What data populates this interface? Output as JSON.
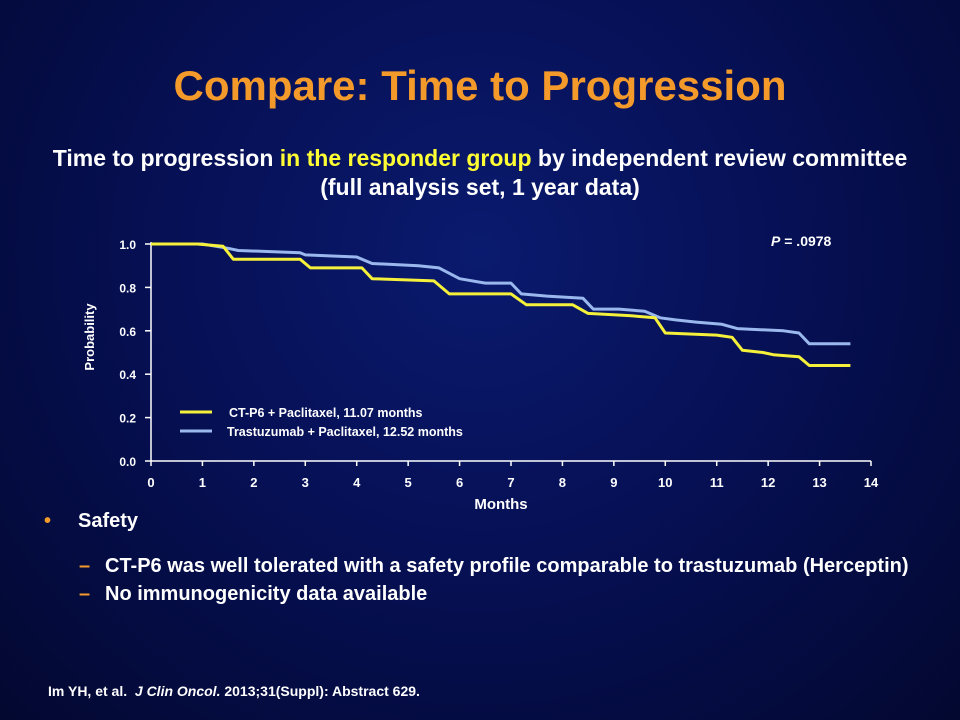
{
  "slide": {
    "title": "Compare: Time to Progression",
    "subtitle_part1": "Time to progression ",
    "subtitle_highlight": "in the responder group",
    "subtitle_part2": " by independent review committee (full analysis set, 1 year data)",
    "highlight_color": "#ffff33",
    "title_color": "#f39a2a"
  },
  "chart_data": {
    "type": "line",
    "xlabel": "Months",
    "ylabel": "Probability",
    "xlim": [
      0,
      14
    ],
    "ylim": [
      0,
      1.0
    ],
    "x_ticks": [
      "0",
      "1",
      "2",
      "3",
      "4",
      "5",
      "6",
      "7",
      "8",
      "9",
      "10",
      "11",
      "12",
      "13",
      "14"
    ],
    "y_ticks": [
      "0.0",
      "0.2",
      "0.4",
      "0.6",
      "0.8",
      "1.0"
    ],
    "annotation_prefix": "P",
    "annotation_value": " = .0978",
    "legend_position": "bottom-left",
    "series": [
      {
        "name": "CT-P6 + Paclitaxel, 11.07 months",
        "color": "#f5f03a",
        "points": [
          [
            0,
            1.0
          ],
          [
            0.9,
            1.0
          ],
          [
            1.4,
            0.99
          ],
          [
            1.6,
            0.93
          ],
          [
            2.9,
            0.93
          ],
          [
            3.1,
            0.89
          ],
          [
            4.1,
            0.89
          ],
          [
            4.3,
            0.84
          ],
          [
            5.5,
            0.83
          ],
          [
            5.8,
            0.77
          ],
          [
            7.0,
            0.77
          ],
          [
            7.3,
            0.72
          ],
          [
            8.2,
            0.72
          ],
          [
            8.5,
            0.68
          ],
          [
            9.3,
            0.67
          ],
          [
            9.8,
            0.66
          ],
          [
            10.0,
            0.59
          ],
          [
            11.0,
            0.58
          ],
          [
            11.3,
            0.57
          ],
          [
            11.5,
            0.51
          ],
          [
            11.9,
            0.5
          ],
          [
            12.1,
            0.49
          ],
          [
            12.6,
            0.48
          ],
          [
            12.8,
            0.44
          ],
          [
            13.6,
            0.44
          ]
        ]
      },
      {
        "name": "Trastuzumab + Paclitaxel, 12.52 months",
        "color": "#9ab8ee",
        "points": [
          [
            0,
            1.0
          ],
          [
            1.0,
            1.0
          ],
          [
            1.5,
            0.98
          ],
          [
            1.7,
            0.97
          ],
          [
            2.9,
            0.96
          ],
          [
            3.0,
            0.95
          ],
          [
            4.0,
            0.94
          ],
          [
            4.3,
            0.91
          ],
          [
            5.2,
            0.9
          ],
          [
            5.6,
            0.89
          ],
          [
            6.0,
            0.84
          ],
          [
            6.5,
            0.82
          ],
          [
            7.0,
            0.82
          ],
          [
            7.2,
            0.77
          ],
          [
            7.7,
            0.76
          ],
          [
            8.4,
            0.75
          ],
          [
            8.6,
            0.7
          ],
          [
            9.1,
            0.7
          ],
          [
            9.6,
            0.69
          ],
          [
            9.9,
            0.66
          ],
          [
            10.2,
            0.65
          ],
          [
            10.6,
            0.64
          ],
          [
            11.1,
            0.63
          ],
          [
            11.4,
            0.61
          ],
          [
            12.3,
            0.6
          ],
          [
            12.6,
            0.59
          ],
          [
            12.8,
            0.54
          ],
          [
            13.6,
            0.54
          ]
        ]
      }
    ]
  },
  "bullets": {
    "safety_label": "Safety",
    "items": [
      "CT-P6 was well tolerated with a safety profile comparable to trastuzumab (Herceptin)",
      "No immunogenicity data available"
    ]
  },
  "reference": {
    "authors": "Im YH, et al.",
    "journal": "J Clin Oncol.",
    "details": " 2013;31(Suppl): Abstract 629."
  }
}
